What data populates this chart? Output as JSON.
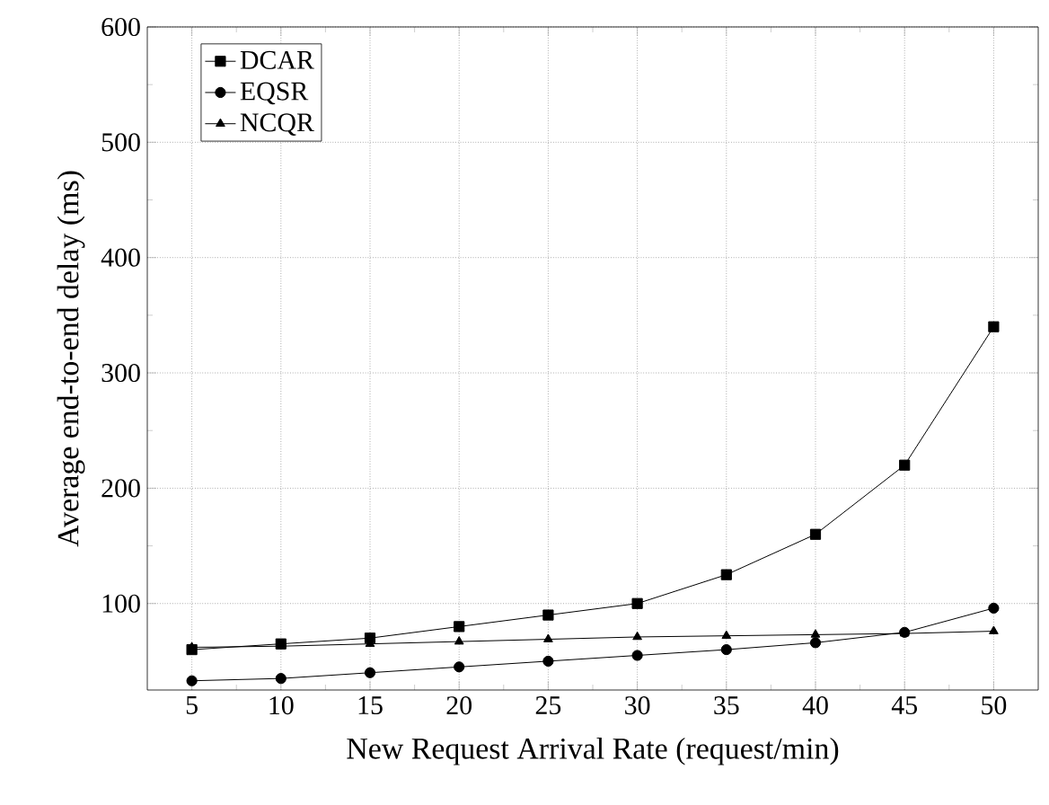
{
  "chart_data": {
    "type": "line",
    "xlabel": "New Request Arrival Rate (request/min)",
    "ylabel": "Average end-to-end delay (ms)",
    "x": [
      5,
      10,
      15,
      20,
      25,
      30,
      35,
      40,
      45,
      50
    ],
    "series": [
      {
        "name": "DCAR",
        "color": "#000000",
        "marker": "square",
        "values": [
          60,
          65,
          70,
          80,
          90,
          100,
          125,
          160,
          220,
          340
        ]
      },
      {
        "name": "EQSR",
        "color": "#000000",
        "marker": "circle",
        "values": [
          33,
          35,
          40,
          45,
          50,
          55,
          60,
          66,
          75,
          96
        ]
      },
      {
        "name": "NCQR",
        "color": "#000000",
        "marker": "triangle",
        "values": [
          62,
          63,
          65,
          67,
          69,
          71,
          72,
          73,
          74,
          76
        ]
      }
    ],
    "xlim": [
      2.5,
      52.5
    ],
    "xticks": [
      5,
      10,
      15,
      20,
      25,
      30,
      35,
      40,
      45,
      50
    ],
    "ylim": [
      25,
      600
    ],
    "yticks": [
      100,
      200,
      300,
      400,
      500,
      600
    ],
    "grid": true,
    "legend": "top left",
    "line_style": "solid"
  }
}
